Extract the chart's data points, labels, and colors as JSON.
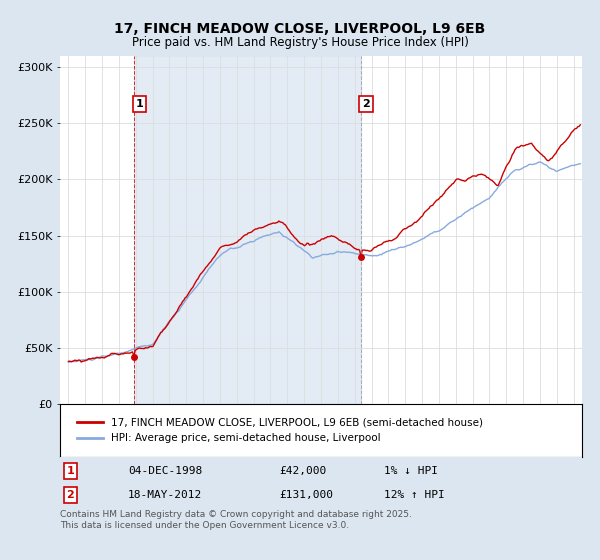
{
  "title": "17, FINCH MEADOW CLOSE, LIVERPOOL, L9 6EB",
  "subtitle": "Price paid vs. HM Land Registry's House Price Index (HPI)",
  "legend_line1": "17, FINCH MEADOW CLOSE, LIVERPOOL, L9 6EB (semi-detached house)",
  "legend_line2": "HPI: Average price, semi-detached house, Liverpool",
  "footnote": "Contains HM Land Registry data © Crown copyright and database right 2025.\nThis data is licensed under the Open Government Licence v3.0.",
  "sale1_label": "1",
  "sale1_date": "04-DEC-1998",
  "sale1_price": "£42,000",
  "sale1_hpi": "1% ↓ HPI",
  "sale2_label": "2",
  "sale2_date": "18-MAY-2012",
  "sale2_price": "£131,000",
  "sale2_hpi": "12% ↑ HPI",
  "outer_bg_color": "#dce6f0",
  "plot_bg_color": "#ffffff",
  "red_line_color": "#cc0000",
  "blue_line_color": "#88aadd",
  "vline1_color": "#cc0000",
  "vline2_color": "#999999",
  "marker_color": "#cc0000",
  "ylim": [
    0,
    310000
  ],
  "yticks": [
    0,
    50000,
    100000,
    150000,
    200000,
    250000,
    300000
  ],
  "ytick_labels": [
    "£0",
    "£50K",
    "£100K",
    "£150K",
    "£200K",
    "£250K",
    "£300K"
  ],
  "sale1_x": 1998.92,
  "sale1_y": 42000,
  "sale2_x": 2012.38,
  "sale2_y": 131000,
  "vline1_x": 1998.92,
  "vline2_x": 2012.38,
  "xlim_left": 1994.5,
  "xlim_right": 2025.5
}
